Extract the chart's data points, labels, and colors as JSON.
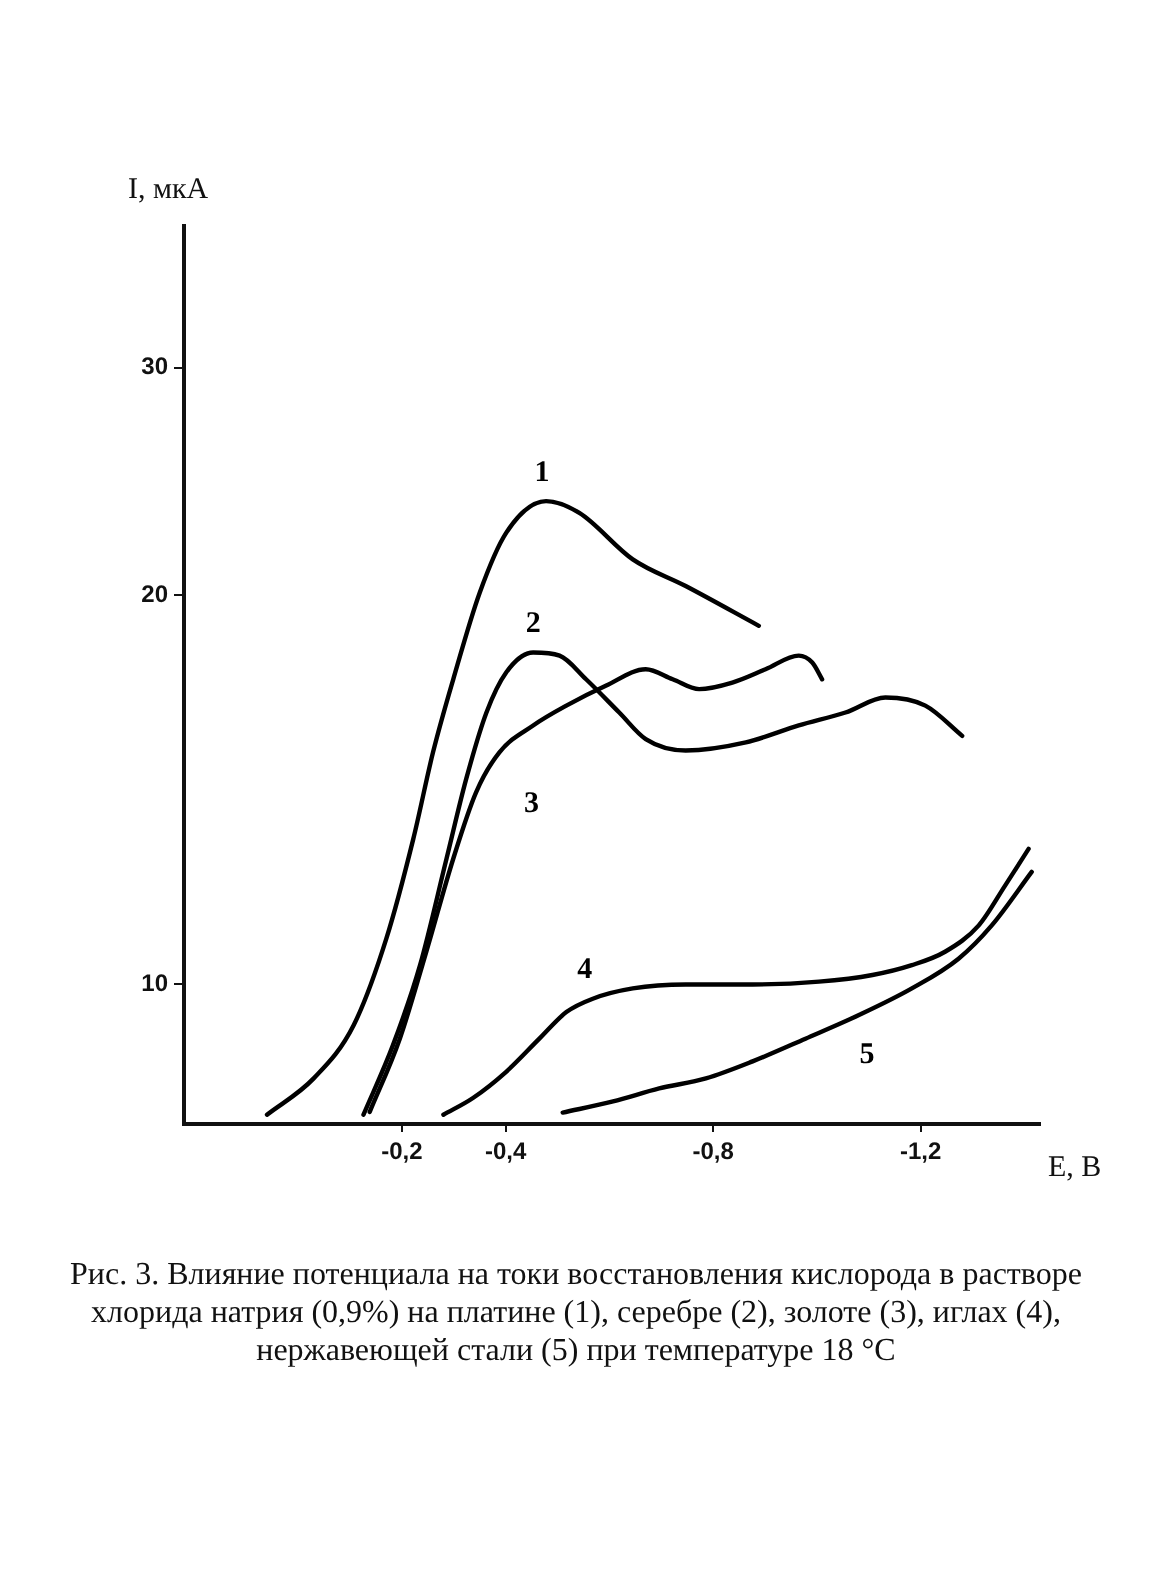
{
  "chart_data": {
    "type": "line",
    "xlabel": "E, В",
    "ylabel": "I, мкА",
    "log": "y",
    "xlim": [
      0.22,
      -1.43
    ],
    "ylim": [
      7.8,
      38.6
    ],
    "xticks": [
      {
        "value": -0.2,
        "label": "-0,2"
      },
      {
        "value": -0.4,
        "label": "-0,4"
      },
      {
        "value": -0.8,
        "label": "-0,8"
      },
      {
        "value": -1.2,
        "label": "-1,2"
      }
    ],
    "yticks": [
      10,
      20,
      30
    ],
    "grid": false,
    "legend": false,
    "marker": "none",
    "line_style": "solid",
    "series": [
      {
        "name": "1",
        "color": "#000000",
        "x": [
          0.06,
          -0.03,
          -0.107,
          -0.17,
          -0.222,
          -0.26,
          -0.299,
          -0.35,
          -0.401,
          -0.478,
          -0.542,
          -0.645,
          -0.747,
          -0.888
        ],
        "values": [
          7.93,
          8.46,
          9.3,
          10.85,
          12.96,
          15.12,
          17.22,
          20.09,
          22.35,
          23.65,
          23.16,
          21.32,
          20.33,
          18.94
        ]
      },
      {
        "name": "2",
        "color": "#000000",
        "x": [
          -0.126,
          -0.183,
          -0.235,
          -0.286,
          -0.324,
          -0.363,
          -0.401,
          -0.453,
          -0.504,
          -0.555,
          -0.619,
          -0.67,
          -0.747,
          -0.863,
          -0.965,
          -1.055,
          -1.132,
          -1.209,
          -1.28
        ],
        "values": [
          7.93,
          8.98,
          10.35,
          12.51,
          14.42,
          16.23,
          17.43,
          18.06,
          17.96,
          17.22,
          16.23,
          15.48,
          15.17,
          15.39,
          15.86,
          16.23,
          16.67,
          16.43,
          15.57
        ]
      },
      {
        "name": "3",
        "color": "#000000",
        "x": [
          -0.138,
          -0.196,
          -0.247,
          -0.299,
          -0.343,
          -0.388,
          -0.453,
          -0.517,
          -0.593,
          -0.67,
          -0.722,
          -0.773,
          -0.837,
          -0.901,
          -0.965,
          -0.991,
          -1.01
        ],
        "values": [
          7.97,
          9.08,
          10.6,
          12.51,
          14.08,
          15.12,
          15.86,
          16.43,
          17.02,
          17.53,
          17.22,
          16.92,
          17.12,
          17.53,
          17.96,
          17.74,
          17.22
        ]
      },
      {
        "name": "4",
        "color": "#000000",
        "x": [
          -0.28,
          -0.337,
          -0.401,
          -0.465,
          -0.517,
          -0.568,
          -0.645,
          -0.747,
          -0.876,
          -1.004,
          -1.107,
          -1.183,
          -1.247,
          -1.312,
          -1.363,
          -1.408
        ],
        "values": [
          7.93,
          8.17,
          8.56,
          9.08,
          9.52,
          9.75,
          9.93,
          10.0,
          10.0,
          10.05,
          10.17,
          10.35,
          10.6,
          11.11,
          11.93,
          12.73
        ]
      },
      {
        "name": "5",
        "color": "#000000",
        "x": [
          -0.51,
          -0.607,
          -0.696,
          -0.786,
          -0.876,
          -0.978,
          -1.081,
          -1.183,
          -1.273,
          -1.337,
          -1.414
        ],
        "values": [
          7.96,
          8.12,
          8.31,
          8.46,
          8.72,
          9.08,
          9.47,
          9.93,
          10.47,
          11.11,
          12.22
        ]
      }
    ],
    "annotations": [
      "Рис. 3. Влияние потенциала на токи восстановления кислорода в растворе хлорида натрия (0,9%) на платине (1), серебре (2), золоте (3), иглах (4), нержавеющей стали (5) при температуре 18 °С"
    ]
  }
}
